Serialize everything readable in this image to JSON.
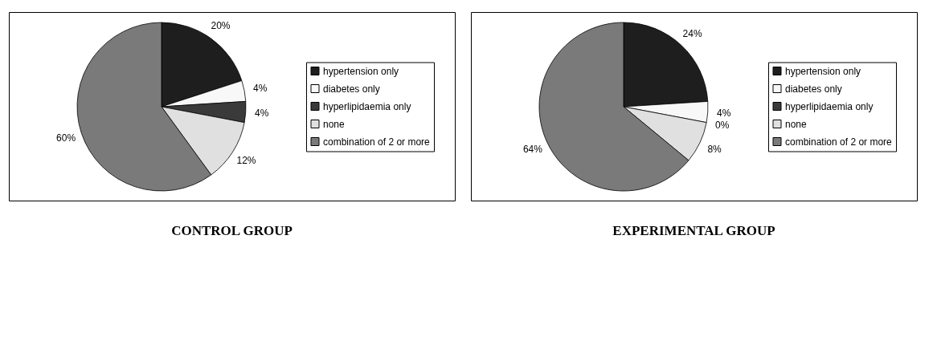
{
  "chart_data": [
    {
      "type": "pie",
      "title": "CONTROL GROUP",
      "categories": [
        "hypertension only",
        "diabetes only",
        "hyperlipidaemia only",
        "none",
        "combination of 2 or more"
      ],
      "values": [
        20,
        4,
        4,
        12,
        60
      ],
      "value_labels": [
        "20%",
        "4%",
        "4%",
        "12%",
        "60%"
      ],
      "colors": [
        "#1e1e1e",
        "#f8f8f8",
        "#3a3a3a",
        "#e0e0e0",
        "#7a7a7a"
      ],
      "legend": "right"
    },
    {
      "type": "pie",
      "title": "EXPERIMENTAL GROUP",
      "categories": [
        "hypertension only",
        "diabetes only",
        "hyperlipidaemia only",
        "none",
        "combination of 2 or more"
      ],
      "values": [
        24,
        4,
        0,
        8,
        64
      ],
      "value_labels": [
        "24%",
        "4%",
        "0%",
        "8%",
        "64%"
      ],
      "colors": [
        "#1e1e1e",
        "#f8f8f8",
        "#3a3a3a",
        "#e0e0e0",
        "#7a7a7a"
      ],
      "legend": "right"
    }
  ]
}
